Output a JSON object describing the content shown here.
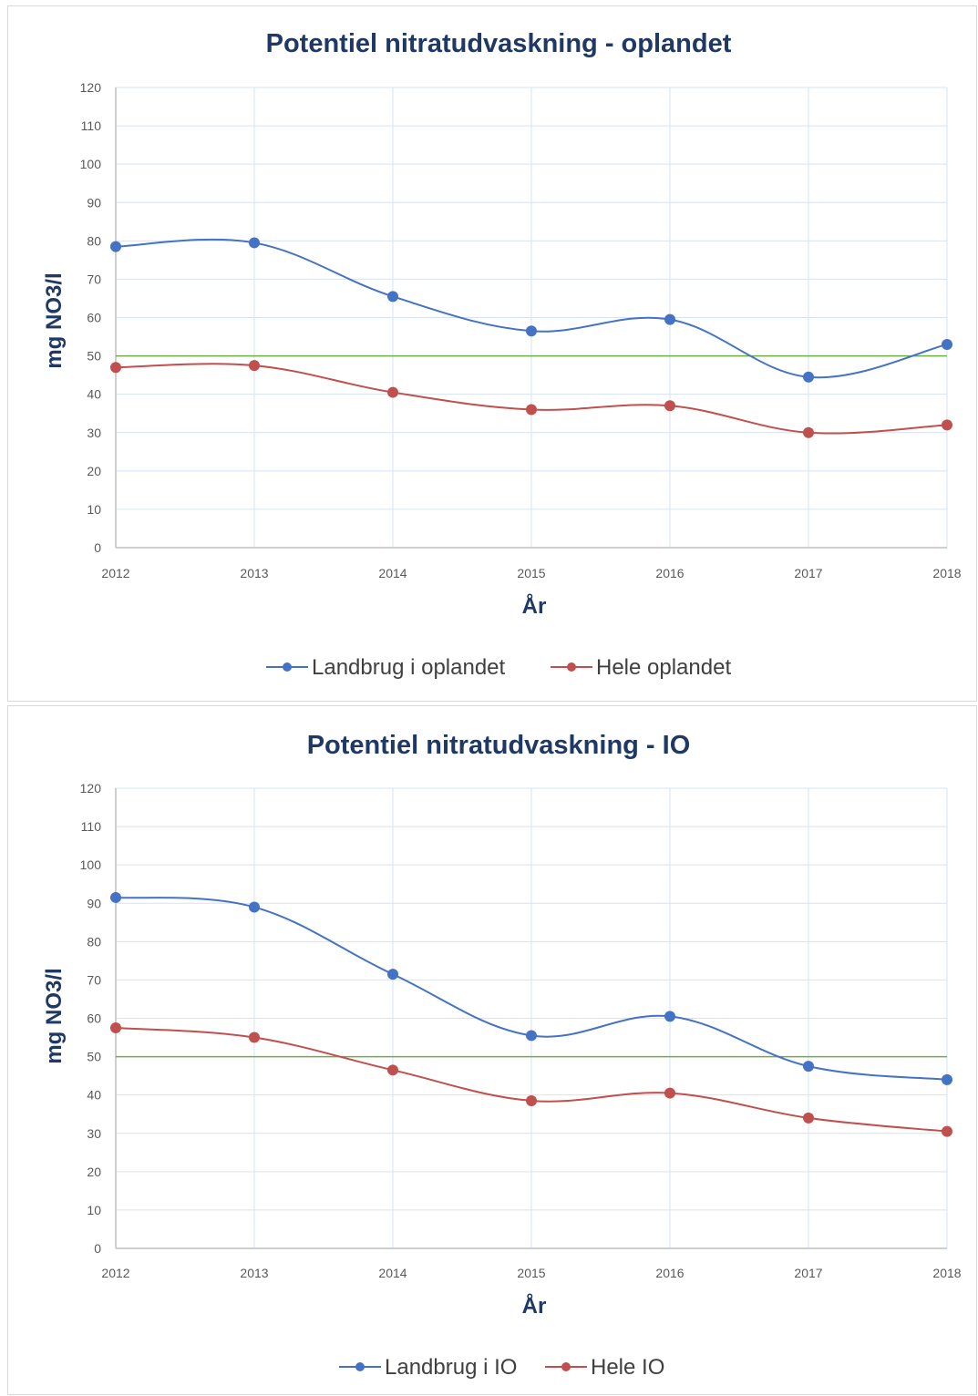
{
  "chart_data": [
    {
      "type": "line",
      "title": "Potentiel nitratudvaskning - oplandet",
      "xlabel": "År",
      "ylabel": "mg NO3/l",
      "ylim": [
        0,
        120
      ],
      "yticks": [
        0,
        10,
        20,
        30,
        40,
        50,
        60,
        70,
        80,
        90,
        100,
        110,
        120
      ],
      "categories": [
        "2012",
        "2013",
        "2014",
        "2015",
        "2016",
        "2017",
        "2018"
      ],
      "grid": true,
      "legend_position": "bottom",
      "reference_line": {
        "value": 50,
        "color": "#70ad47"
      },
      "series": [
        {
          "name": "Landbrug i oplandet",
          "color": "#4472c4",
          "values": [
            78.5,
            79.5,
            65.5,
            56.5,
            59.5,
            44.5,
            53
          ]
        },
        {
          "name": "Hele oplandet",
          "color": "#c0504d",
          "values": [
            47,
            47.5,
            40.5,
            36,
            37,
            30,
            32
          ]
        }
      ]
    },
    {
      "type": "line",
      "title": "Potentiel nitratudvaskning - IO",
      "xlabel": "År",
      "ylabel": "mg NO3/l",
      "ylim": [
        0,
        120
      ],
      "yticks": [
        0,
        10,
        20,
        30,
        40,
        50,
        60,
        70,
        80,
        90,
        100,
        110,
        120
      ],
      "categories": [
        "2012",
        "2013",
        "2014",
        "2015",
        "2016",
        "2017",
        "2018"
      ],
      "grid": true,
      "legend_position": "bottom",
      "reference_line": {
        "value": 50,
        "color": "#70ad47"
      },
      "series": [
        {
          "name": "Landbrug i IO",
          "color": "#4472c4",
          "values": [
            91.5,
            89,
            71.5,
            55.5,
            60.5,
            47.5,
            44
          ]
        },
        {
          "name": "Hele IO",
          "color": "#c0504d",
          "values": [
            57.5,
            55,
            46.5,
            38.5,
            40.5,
            34,
            30.5
          ]
        }
      ]
    }
  ],
  "colors": {
    "title": "#1f3864",
    "axis_title": "#1f3864",
    "grid": "#d6e3f3",
    "axis": "#bfbfbf"
  }
}
